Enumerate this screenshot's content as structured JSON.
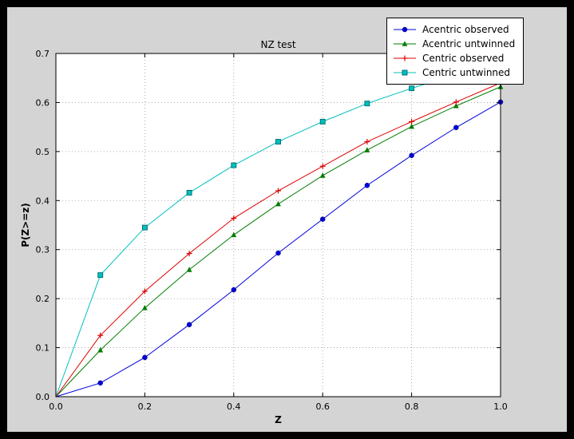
{
  "window": {
    "outer_background": "#000000",
    "figure_background": "#d4d4d4",
    "axes_background": "#ffffff"
  },
  "chart_data": {
    "type": "line",
    "title": "NZ test",
    "xlabel": "Z",
    "ylabel": "P(Z>=z)",
    "xlim": [
      0.0,
      1.0
    ],
    "ylim": [
      0.0,
      0.7
    ],
    "xticks": [
      0.0,
      0.2,
      0.4,
      0.6,
      0.8,
      1.0
    ],
    "yticks": [
      0.0,
      0.1,
      0.2,
      0.3,
      0.4,
      0.5,
      0.6,
      0.7
    ],
    "grid": true,
    "grid_style": "dotted",
    "legend_position": "upper right",
    "x": [
      0.0,
      0.1,
      0.2,
      0.3,
      0.4,
      0.5,
      0.6,
      0.7,
      0.8,
      0.9,
      1.0
    ],
    "series": [
      {
        "name": "Acentric observed",
        "color": "#0000dd",
        "marker": "circle",
        "values": [
          0.0,
          0.028,
          0.08,
          0.147,
          0.218,
          0.293,
          0.362,
          0.431,
          0.492,
          0.549,
          0.601
        ]
      },
      {
        "name": "Acentric untwinned",
        "color": "#007d00",
        "marker": "triangle",
        "values": [
          0.0,
          0.095,
          0.181,
          0.259,
          0.33,
          0.393,
          0.451,
          0.503,
          0.551,
          0.593,
          0.632
        ]
      },
      {
        "name": "Centric observed",
        "color": "#dd0000",
        "marker": "plus",
        "values": [
          0.0,
          0.125,
          0.215,
          0.292,
          0.364,
          0.42,
          0.47,
          0.52,
          0.561,
          0.601,
          0.64
        ]
      },
      {
        "name": "Centric untwinned",
        "color": "#00bfbf",
        "marker": "square",
        "values": [
          0.0,
          0.248,
          0.345,
          0.416,
          0.472,
          0.52,
          0.561,
          0.598,
          0.629,
          0.657,
          0.683
        ]
      }
    ]
  }
}
